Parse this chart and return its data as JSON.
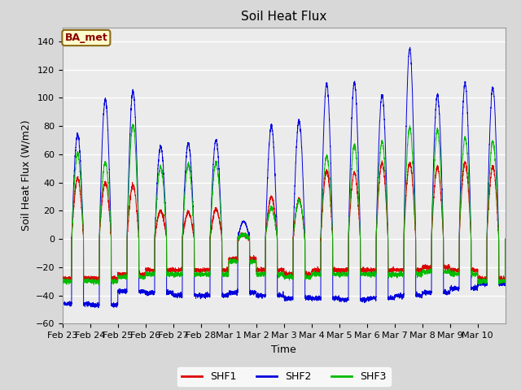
{
  "title": "Soil Heat Flux",
  "xlabel": "Time",
  "ylabel": "Soil Heat Flux (W/m2)",
  "ylim": [
    -60,
    150
  ],
  "yticks": [
    -60,
    -40,
    -20,
    0,
    20,
    40,
    60,
    80,
    100,
    120,
    140
  ],
  "annotation_text": "BA_met",
  "annotation_bg": "#ffffcc",
  "annotation_border": "#8B6914",
  "annotation_text_color": "#8B0000",
  "line_colors": {
    "SHF1": "#dd0000",
    "SHF2": "#0000dd",
    "SHF3": "#00bb00"
  },
  "legend_labels": [
    "SHF1",
    "SHF2",
    "SHF3"
  ],
  "fig_bg_color": "#d8d8d8",
  "plot_bg_color": "#ebebeb",
  "grid_color": "#ffffff",
  "tick_labels": [
    "Feb 23",
    "Feb 24",
    "Feb 25",
    "Feb 26",
    "Feb 27",
    "Feb 28",
    "Mar 1",
    "Mar 2",
    "Mar 3",
    "Mar 4",
    "Mar 5",
    "Mar 6",
    "Mar 7",
    "Mar 8",
    "Mar 9",
    "Mar 10"
  ],
  "n_points": 4800,
  "shf1_peaks": [
    43,
    40,
    38,
    20,
    19,
    21,
    3,
    30,
    28,
    48,
    47,
    54,
    54,
    51,
    54,
    51
  ],
  "shf2_peaks": [
    74,
    99,
    105,
    66,
    68,
    70,
    28,
    80,
    84,
    110,
    111,
    102,
    135,
    102,
    110,
    107
  ],
  "shf3_peaks": [
    60,
    54,
    81,
    51,
    53,
    54,
    3,
    22,
    27,
    59,
    67,
    69,
    79,
    77,
    72,
    69
  ],
  "shf1_night": [
    -28,
    -28,
    -25,
    -22,
    -22,
    -22,
    -14,
    -22,
    -25,
    -22,
    -22,
    -22,
    -22,
    -20,
    -22,
    -28
  ],
  "shf2_night": [
    -46,
    -47,
    -37,
    -38,
    -40,
    -40,
    -38,
    -40,
    -42,
    -42,
    -43,
    -42,
    -40,
    -38,
    -35,
    -32
  ],
  "shf3_night": [
    -30,
    -30,
    -27,
    -25,
    -25,
    -25,
    -16,
    -25,
    -27,
    -25,
    -25,
    -25,
    -25,
    -23,
    -25,
    -30
  ]
}
